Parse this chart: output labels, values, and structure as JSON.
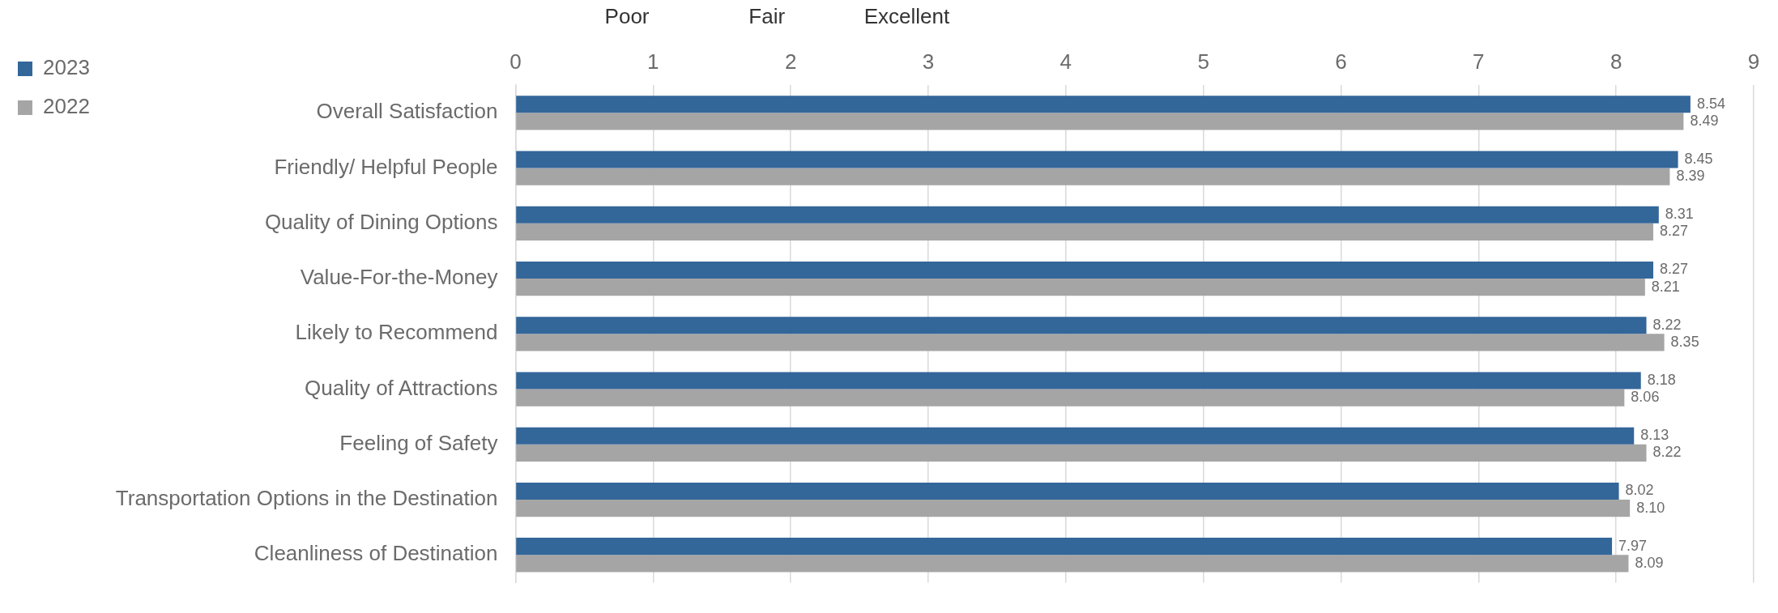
{
  "chart_data": {
    "type": "bar",
    "orientation": "horizontal",
    "categories": [
      "Overall Satisfaction",
      "Friendly/ Helpful People",
      "Quality of Dining Options",
      "Value-For-the-Money",
      "Likely to Recommend",
      "Quality of Attractions",
      "Feeling of Safety",
      "Transportation Options in the Destination",
      "Cleanliness of Destination"
    ],
    "series": [
      {
        "name": "2023",
        "color": "#336699",
        "values": [
          8.54,
          8.45,
          8.31,
          8.27,
          8.22,
          8.18,
          8.13,
          8.02,
          7.97
        ],
        "value_labels": [
          "8.54",
          "8.45",
          "8.31",
          "8.27",
          "8.22",
          "8.18",
          "8.13",
          "8.02",
          "7.97"
        ]
      },
      {
        "name": "2022",
        "color": "#a5a5a5",
        "values": [
          8.49,
          8.39,
          8.27,
          8.21,
          8.35,
          8.06,
          8.22,
          8.1,
          8.09
        ],
        "value_labels": [
          "8.49",
          "8.39",
          "8.27",
          "8.21",
          "8.35",
          "8.06",
          "8.22",
          "8.10",
          "8.09"
        ]
      }
    ],
    "xlim": [
      0,
      9
    ],
    "xticks": [
      0,
      1,
      2,
      3,
      4,
      5,
      6,
      7,
      8,
      9
    ],
    "grid": "x",
    "legend": "top left",
    "annotations": [
      "Poor",
      "Fair",
      "Excellent"
    ]
  }
}
